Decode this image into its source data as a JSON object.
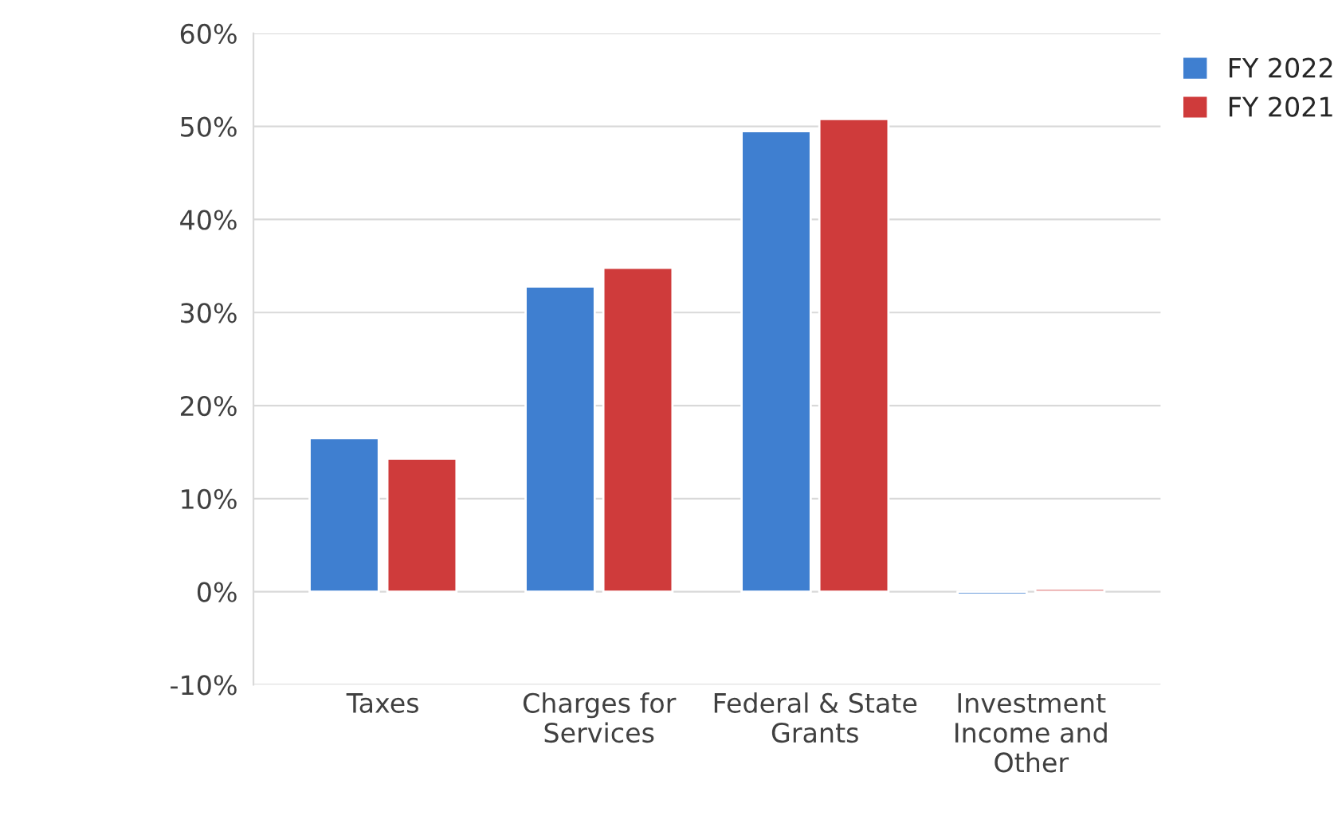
{
  "chart_data": {
    "type": "bar",
    "categories": [
      "Taxes",
      "Charges for\nServices",
      "Federal & State\nGrants",
      "Investment\nIncome and\nOther"
    ],
    "series": [
      {
        "name": "FY 2022",
        "color": "#3f7fd0",
        "values": [
          16.5,
          32.8,
          49.5,
          -0.3
        ]
      },
      {
        "name": "FY 2021",
        "color": "#cf3b3b",
        "values": [
          14.3,
          34.8,
          50.8,
          0.3
        ]
      }
    ],
    "ylim": [
      -10,
      60
    ],
    "yticks": [
      {
        "value": -10,
        "label": "-10%"
      },
      {
        "value": 0,
        "label": "0%"
      },
      {
        "value": 10,
        "label": "10%"
      },
      {
        "value": 20,
        "label": "20%"
      },
      {
        "value": 30,
        "label": "30%"
      },
      {
        "value": 40,
        "label": "40%"
      },
      {
        "value": 50,
        "label": "50%"
      },
      {
        "value": 60,
        "label": "60%"
      }
    ],
    "grid": "y",
    "legend": "top right"
  }
}
